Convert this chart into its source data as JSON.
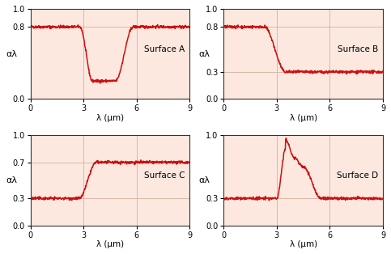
{
  "title_A": "Surface A",
  "title_B": "Surface B",
  "title_C": "Surface C",
  "title_D": "Surface D",
  "xlim": [
    0,
    9
  ],
  "ylim": [
    0,
    1
  ],
  "xlabel": "λ (μm)",
  "ylabel": "αλ",
  "xticks": [
    0,
    3,
    6,
    9
  ],
  "yticks_A": [
    0,
    0.8,
    1
  ],
  "yticks_B": [
    0,
    0.3,
    0.8,
    1
  ],
  "yticks_C": [
    0,
    0.3,
    0.7,
    1
  ],
  "yticks_D": [
    0,
    0.3,
    1
  ],
  "bg_color": "#fce8df",
  "line_color": "#cc1111",
  "grid_color": "#d4b0a0",
  "noise_std": 0.008
}
